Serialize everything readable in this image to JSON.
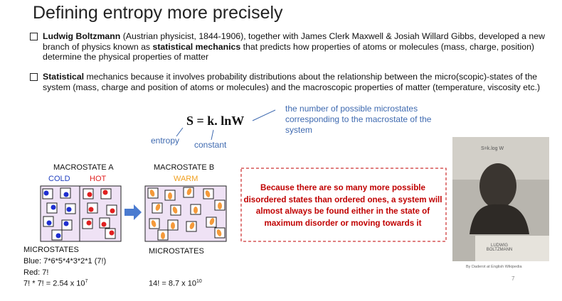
{
  "title": "Defining entropy more precisely",
  "bullets": [
    [
      "Ludwig Boltzmann",
      " (Austrian physicist, 1844-1906), together with James Clerk Maxwell & Josiah Willard Gibbs, developed a new branch of physics known as ",
      "statistical mechanics",
      " that predicts how properties of atoms or molecules (mass, charge, position) determine the physical properties of matter"
    ],
    [
      "Statistical",
      " mechanics because it involves probability distributions about the relationship between the micro(scopic)-states of the system (mass, charge and position of atoms or molecules) and the macroscopic properties of matter (temperature, viscosity etc.)"
    ]
  ],
  "formula": {
    "equation": "S = k. lnW",
    "entropy": "entropy",
    "constant": "constant",
    "w_note": "the number of possible microstates corresponding to the macrostate of the system"
  },
  "macrostate_a": {
    "label": "MACROSTATE A",
    "cold": "COLD",
    "hot": "HOT",
    "microstates": "MICROSTATES",
    "blue": "Blue: 7*6*5*4*3*2*1 (7!)",
    "red": "Red: 7!",
    "total": "7! * 7! = 2.54 x 10",
    "total_exp": "7"
  },
  "macrostate_b": {
    "label": "MACROSTATE B",
    "warm": "WARM",
    "microstates": "MICROSTATES",
    "total": "14! = 8.7 x 10",
    "total_exp": "10"
  },
  "callout": "Because there are so many more possible disordered states than ordered ones, a system will almost always be found either in the state of maximum disorder or moving towards it",
  "photo": {
    "inscription": "S=k.log W",
    "plaque": "LUDWIG BOLTZMANN",
    "credit": "By Daderot at English Wikipedia"
  },
  "page_number": "7"
}
